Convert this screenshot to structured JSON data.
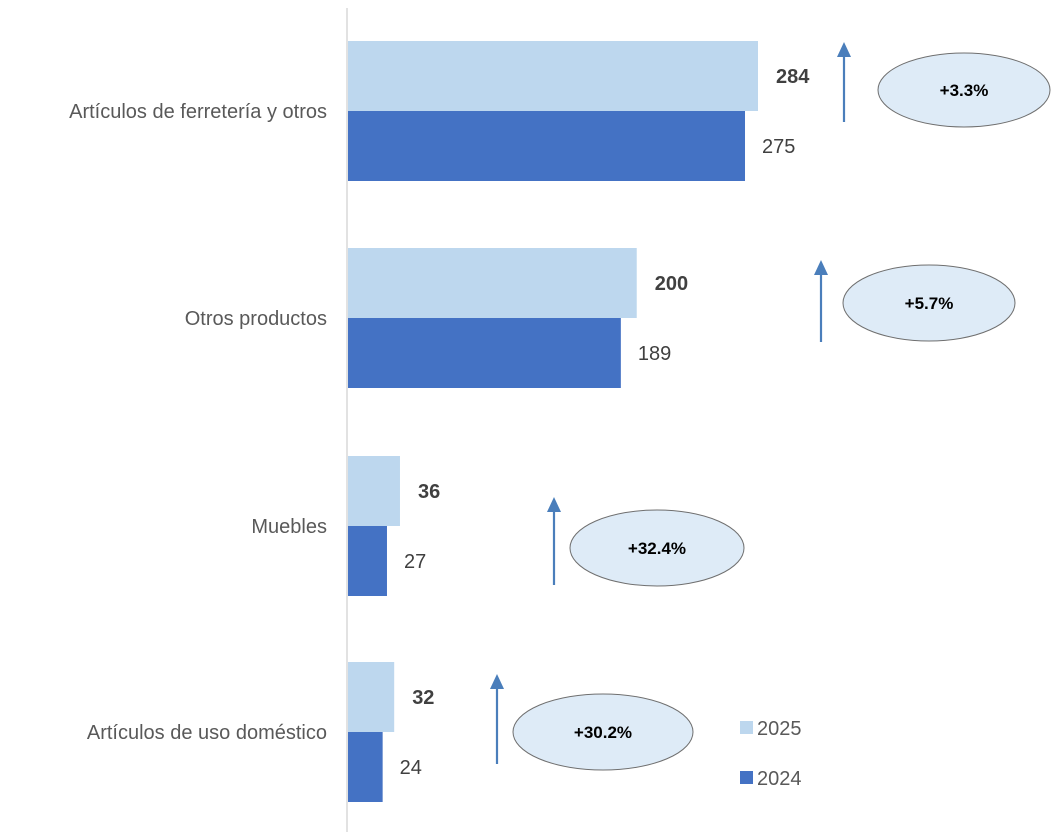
{
  "chart_data": {
    "type": "bar",
    "orientation": "horizontal",
    "categories": [
      "Artículos de ferretería y otros",
      "Otros productos",
      "Muebles",
      "Artículos de uso doméstico"
    ],
    "series": [
      {
        "name": "2025",
        "values": [
          284,
          200,
          36,
          32
        ],
        "color": "#BDD7EE"
      },
      {
        "name": "2024",
        "values": [
          275,
          189,
          27,
          24
        ],
        "color": "#4472C4"
      }
    ],
    "growth_labels": [
      "+3.3%",
      "+5.7%",
      "+32.4%",
      "+30.2%"
    ],
    "value_labels_2025": [
      "284",
      "200",
      "36",
      "32"
    ],
    "value_labels_2024": [
      "275",
      "189",
      "27",
      "24"
    ],
    "xlim": [
      0,
      284
    ],
    "legend_position": "bottom-right",
    "arrow_color": "#4A7EBB",
    "ellipse_fill": "#DEEBF7",
    "axis_color": "#D9D9D9"
  }
}
